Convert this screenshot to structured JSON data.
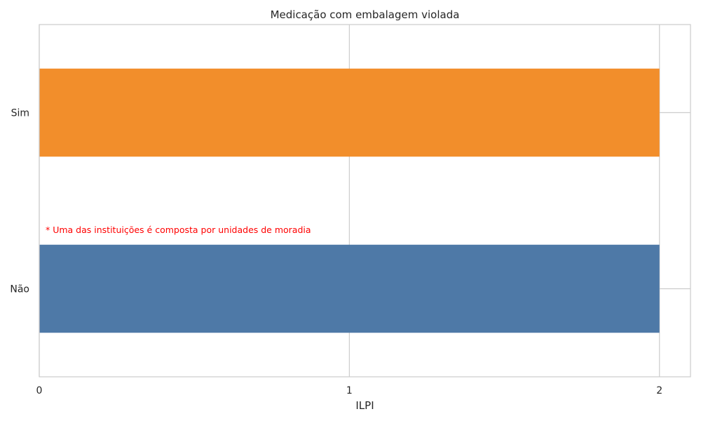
{
  "chart_data": {
    "type": "bar",
    "orientation": "horizontal",
    "title": "Medicação com embalagem violada",
    "xlabel": "ILPI",
    "ylabel": "",
    "categories": [
      "Sim",
      "Não"
    ],
    "values": [
      2,
      2
    ],
    "colors": [
      "#F28E2B",
      "#4E79A7"
    ],
    "xlim": [
      0,
      2.1
    ],
    "xticks": [
      0,
      1,
      2
    ],
    "xtick_labels": [
      "0",
      "1",
      "2"
    ],
    "grid": true,
    "annotation": {
      "text": "* Uma das instituições é composta por unidades de moradia",
      "color": "#FF0000"
    }
  }
}
